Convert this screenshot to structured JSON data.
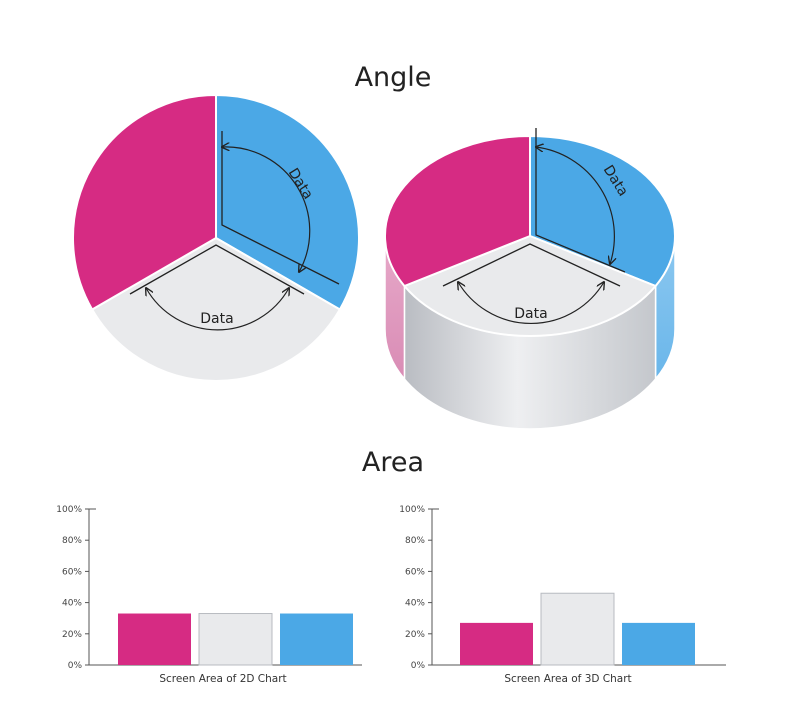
{
  "angle_section": {
    "title": "Angle",
    "annotation_label": "Data"
  },
  "area_section": {
    "title": "Area"
  },
  "colors": {
    "magenta": "#d62b83",
    "blue": "#4ba8e6",
    "grey": "#e9eaec",
    "axis": "#555555"
  },
  "chart_data": [
    {
      "type": "pie",
      "labels": [
        "",
        "",
        ""
      ],
      "values": [
        33.3,
        33.3,
        33.3
      ],
      "colors": [
        "#4ba8e6",
        "#e9eaec",
        "#d62b83"
      ],
      "annotations": [
        "Data",
        "Data"
      ],
      "title": "",
      "variant": "2D"
    },
    {
      "type": "pie",
      "labels": [
        "",
        "",
        ""
      ],
      "values": [
        33.3,
        33.3,
        33.3
      ],
      "colors": [
        "#4ba8e6",
        "#e9eaec",
        "#d62b83"
      ],
      "annotations": [
        "Data",
        "Data"
      ],
      "title": "",
      "variant": "3D"
    },
    {
      "type": "bar",
      "categories": [
        "",
        "",
        ""
      ],
      "values": [
        33,
        33,
        33
      ],
      "colors": [
        "#d62b83",
        "#e9eaec",
        "#4ba8e6"
      ],
      "xlabel": "Screen Area of 2D Chart",
      "ylabel": "",
      "ylim": [
        0,
        100
      ],
      "yticks": [
        "0%",
        "20%",
        "40%",
        "60%",
        "80%",
        "100%"
      ],
      "grid": false
    },
    {
      "type": "bar",
      "categories": [
        "",
        "",
        ""
      ],
      "values": [
        27,
        46,
        27
      ],
      "colors": [
        "#d62b83",
        "#e9eaec",
        "#4ba8e6"
      ],
      "xlabel": "Screen Area of 3D Chart",
      "ylabel": "",
      "ylim": [
        0,
        100
      ],
      "yticks": [
        "0%",
        "20%",
        "40%",
        "60%",
        "80%",
        "100%"
      ],
      "grid": false
    }
  ]
}
